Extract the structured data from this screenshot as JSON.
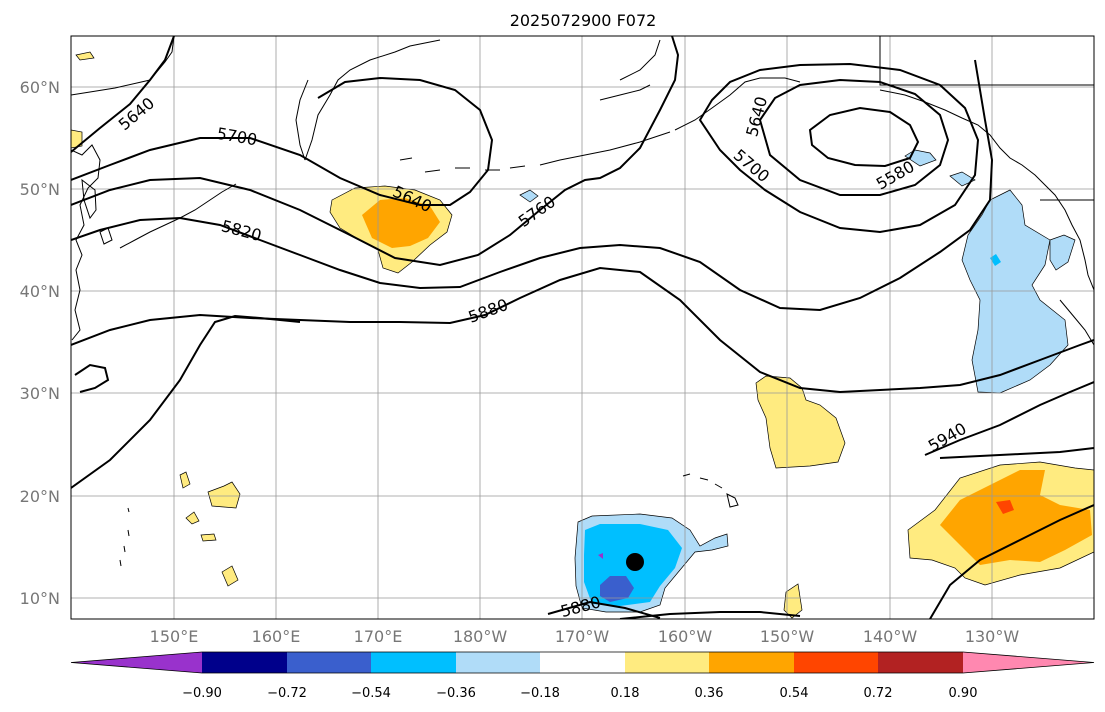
{
  "title": "2025072900 F072",
  "map": {
    "lat_ticks": [
      "60°N",
      "50°N",
      "40°N",
      "30°N",
      "20°N",
      "10°N"
    ],
    "lon_ticks": [
      "150°E",
      "160°E",
      "170°E",
      "180°W",
      "170°W",
      "160°W",
      "150°W",
      "140°W",
      "130°W"
    ],
    "grid": true,
    "contour_labels": [
      "5640",
      "5700",
      "5820",
      "5640",
      "5760",
      "5880",
      "5640",
      "5700",
      "5580",
      "5940",
      "5880"
    ],
    "anomaly_colors": {
      "light_yellow": "#ffeb80",
      "orange": "#ffa500",
      "red_orange": "#ff4500",
      "light_blue": "#b0dcf8",
      "cyan": "#00bfff",
      "blue": "#3a5fcd"
    },
    "marker": "black-dot"
  },
  "colorbar": {
    "ticks": [
      "−0.90",
      "−0.72",
      "−0.54",
      "−0.36",
      "−0.18",
      "0.18",
      "0.36",
      "0.54",
      "0.72",
      "0.90"
    ],
    "colors": [
      "#9932cc",
      "#00008b",
      "#3a5fcd",
      "#00bfff",
      "#b0dcf8",
      "#ffffff",
      "#ffeb80",
      "#ffa500",
      "#ff4500",
      "#b22222",
      "#ff88b0"
    ]
  }
}
